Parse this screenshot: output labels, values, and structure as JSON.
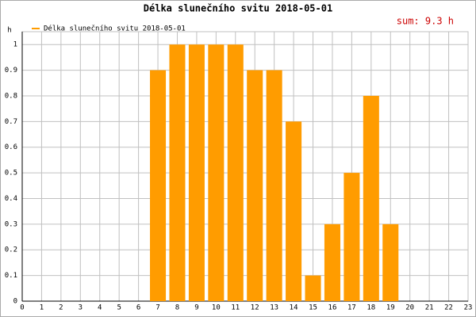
{
  "chart_data": {
    "type": "bar",
    "title": "Délka slunečního svitu 2018-05-01",
    "legend_label": "Délka slunečního svitu 2018-05-01",
    "annotation": "sum: 9.3 h",
    "y_label": "h",
    "x": [
      7,
      8,
      9,
      10,
      11,
      12,
      13,
      14,
      15,
      16,
      17,
      18,
      19
    ],
    "values": [
      0.9,
      1,
      1,
      1,
      1,
      0.9,
      0.9,
      0.7,
      0.1,
      0.3,
      0.5,
      0.8,
      0.3
    ],
    "color": "#ff9c00",
    "xlim": [
      0,
      23
    ],
    "xticks": [
      0,
      1,
      2,
      3,
      4,
      5,
      6,
      7,
      8,
      9,
      10,
      11,
      12,
      13,
      14,
      15,
      16,
      17,
      18,
      19,
      20,
      21,
      22,
      23
    ],
    "ylim": [
      0,
      1.05
    ],
    "yticks": [
      0,
      0.1,
      0.2,
      0.3,
      0.4,
      0.5,
      0.6,
      0.7,
      0.8,
      0.9,
      1
    ],
    "grid": true
  }
}
